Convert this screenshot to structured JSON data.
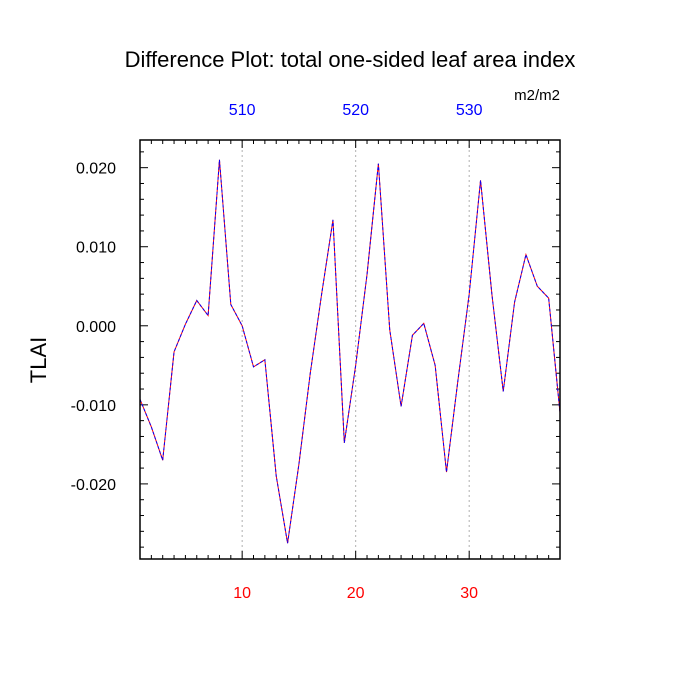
{
  "chart_data": {
    "type": "line",
    "title": "Difference Plot: total one-sided leaf area index",
    "units": "m2/m2",
    "ylabel": "TLAI",
    "x": [
      1,
      2,
      3,
      4,
      5,
      6,
      7,
      8,
      9,
      10,
      11,
      12,
      13,
      14,
      15,
      16,
      17,
      18,
      19,
      20,
      21,
      22,
      23,
      24,
      25,
      26,
      27,
      28,
      29,
      30,
      31,
      32,
      33,
      34,
      35,
      36,
      37,
      38
    ],
    "series": [
      {
        "values": [
          -0.0093,
          -0.0128,
          -0.017,
          -0.0033,
          0.0002,
          0.0032,
          0.0013,
          0.021,
          0.0027,
          0.0,
          -0.0052,
          -0.0043,
          -0.019,
          -0.0275,
          -0.0175,
          -0.006,
          0.004,
          0.0134,
          -0.0148,
          -0.005,
          0.0065,
          0.0205,
          -0.0005,
          -0.0102,
          -0.0012,
          0.0003,
          -0.005,
          -0.0185,
          -0.007,
          0.004,
          0.0184,
          0.004,
          -0.0083,
          0.003,
          0.009,
          0.005,
          0.0035,
          -0.011
        ],
        "color": "#7a00c8"
      }
    ],
    "xlim": [
      1,
      38
    ],
    "ylim": [
      -0.0295,
      0.0235
    ],
    "bottom_axis": {
      "ticks": [
        10,
        20,
        30
      ],
      "labels": [
        "10",
        "20",
        "30"
      ],
      "color": "#ff0000"
    },
    "top_axis": {
      "ticks": [
        10,
        20,
        30
      ],
      "labels": [
        "510",
        "520",
        "530"
      ],
      "color": "#0000ff"
    },
    "y_axis": {
      "ticks": [
        0.02,
        0.01,
        0.0,
        -0.01,
        -0.02
      ],
      "labels": [
        "0.020",
        "0.010",
        "0.000",
        "-0.010",
        "-0.020"
      ]
    },
    "grid": "vertical dotted lines at x ticks",
    "legend": "none"
  }
}
